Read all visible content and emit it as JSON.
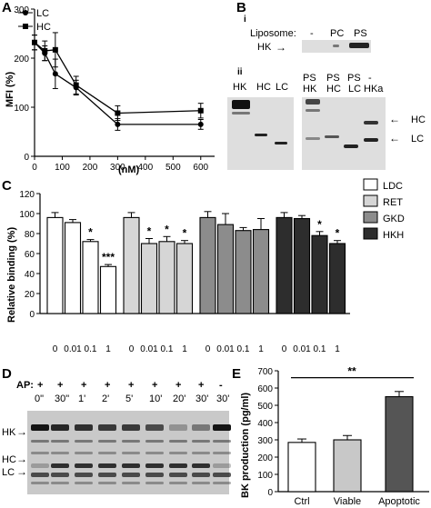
{
  "panels": {
    "A": "A",
    "B": "B",
    "C": "C",
    "D": "D",
    "E": "E"
  },
  "panel_a": {
    "legend": [
      "LC",
      "HC"
    ],
    "ylabel": "MFI (%)",
    "xlabel": "(nM)",
    "yticks": [
      "0",
      "100",
      "200",
      "300"
    ],
    "xticks": [
      "0",
      "100",
      "200",
      "300",
      "400",
      "500",
      "600"
    ]
  },
  "panel_b": {
    "sub_i": "i",
    "sub_ii": "ii",
    "liposome_label": "Liposome:",
    "liposome_lanes": [
      "-",
      "PC",
      "PS"
    ],
    "hk_label": "HK",
    "gel_left_lanes": [
      "HK",
      "HC",
      "LC"
    ],
    "gel_right_lanes_top": [
      "PS",
      "PS",
      "PS",
      "-"
    ],
    "gel_right_lanes_bottom": [
      "HK",
      "HC",
      "LC",
      "HKa"
    ],
    "hc_marker": "HC",
    "lc_marker": "LC"
  },
  "panel_c": {
    "ylabel": "Relative binding (%)",
    "yticks": [
      "0",
      "20",
      "40",
      "60",
      "80",
      "100",
      "120"
    ],
    "legend": [
      "LDC",
      "RET",
      "GKD",
      "HKH"
    ],
    "xticks": [
      "0",
      "0.01",
      "0.1",
      "1"
    ],
    "stars": [
      "*",
      "***",
      "*",
      "*",
      "*",
      "*",
      "*"
    ]
  },
  "panel_d": {
    "ap_label": "AP:",
    "ap_marks": [
      "+",
      "+",
      "+",
      "+",
      "+",
      "+",
      "+",
      "+",
      "-"
    ],
    "times": [
      "0\"",
      "30\"",
      "1'",
      "2'",
      "5'",
      "10'",
      "20'",
      "30'",
      "30'"
    ],
    "band_labels": [
      "HK",
      "HC",
      "LC"
    ]
  },
  "panel_e": {
    "ylabel": "BK production (pg/ml)",
    "yticks": [
      "0",
      "100",
      "200",
      "300",
      "400",
      "500",
      "600",
      "700"
    ],
    "categories": [
      "Ctrl",
      "Viable",
      "Apoptotic"
    ],
    "significance": "**"
  },
  "chart_data": [
    {
      "type": "line",
      "panel": "A",
      "xlabel": "(nM)",
      "ylabel": "MFI (%)",
      "xlim": [
        0,
        650
      ],
      "ylim": [
        0,
        300
      ],
      "series": [
        {
          "name": "LC",
          "x": [
            0,
            37,
            75,
            150,
            300,
            600
          ],
          "y": [
            232,
            210,
            168,
            140,
            65,
            65
          ],
          "err": [
            15,
            15,
            30,
            15,
            12,
            10
          ]
        },
        {
          "name": "HC",
          "x": [
            0,
            37,
            75,
            150,
            300,
            600
          ],
          "y": [
            232,
            215,
            217,
            145,
            88,
            93
          ],
          "err": [
            15,
            20,
            35,
            18,
            15,
            15
          ]
        }
      ]
    },
    {
      "type": "bar",
      "panel": "C",
      "ylabel": "Relative binding (%)",
      "ylim": [
        0,
        120
      ],
      "categories": [
        "0",
        "0.01",
        "0.1",
        "1"
      ],
      "series": [
        {
          "name": "LDC",
          "values": [
            96,
            91,
            72,
            47
          ],
          "err": [
            5,
            3,
            2,
            2
          ],
          "color": "#ffffff"
        },
        {
          "name": "RET",
          "values": [
            96,
            70,
            72,
            70
          ],
          "err": [
            5,
            5,
            5,
            3
          ],
          "color": "#d6d6d6"
        },
        {
          "name": "GKD",
          "values": [
            96,
            89,
            83,
            84
          ],
          "err": [
            6,
            11,
            3,
            11
          ],
          "color": "#8c8c8c"
        },
        {
          "name": "HKH",
          "values": [
            96,
            95,
            78,
            70
          ],
          "err": [
            5,
            3,
            4,
            3
          ],
          "color": "#2d2d2d"
        }
      ]
    },
    {
      "type": "bar",
      "panel": "E",
      "ylabel": "BK production (pg/ml)",
      "ylim": [
        0,
        700
      ],
      "categories": [
        "Ctrl",
        "Viable",
        "Apoptotic"
      ],
      "values": [
        285,
        300,
        550
      ],
      "err": [
        20,
        25,
        30
      ],
      "colors": [
        "#ffffff",
        "#c8c8c8",
        "#555555"
      ]
    }
  ]
}
